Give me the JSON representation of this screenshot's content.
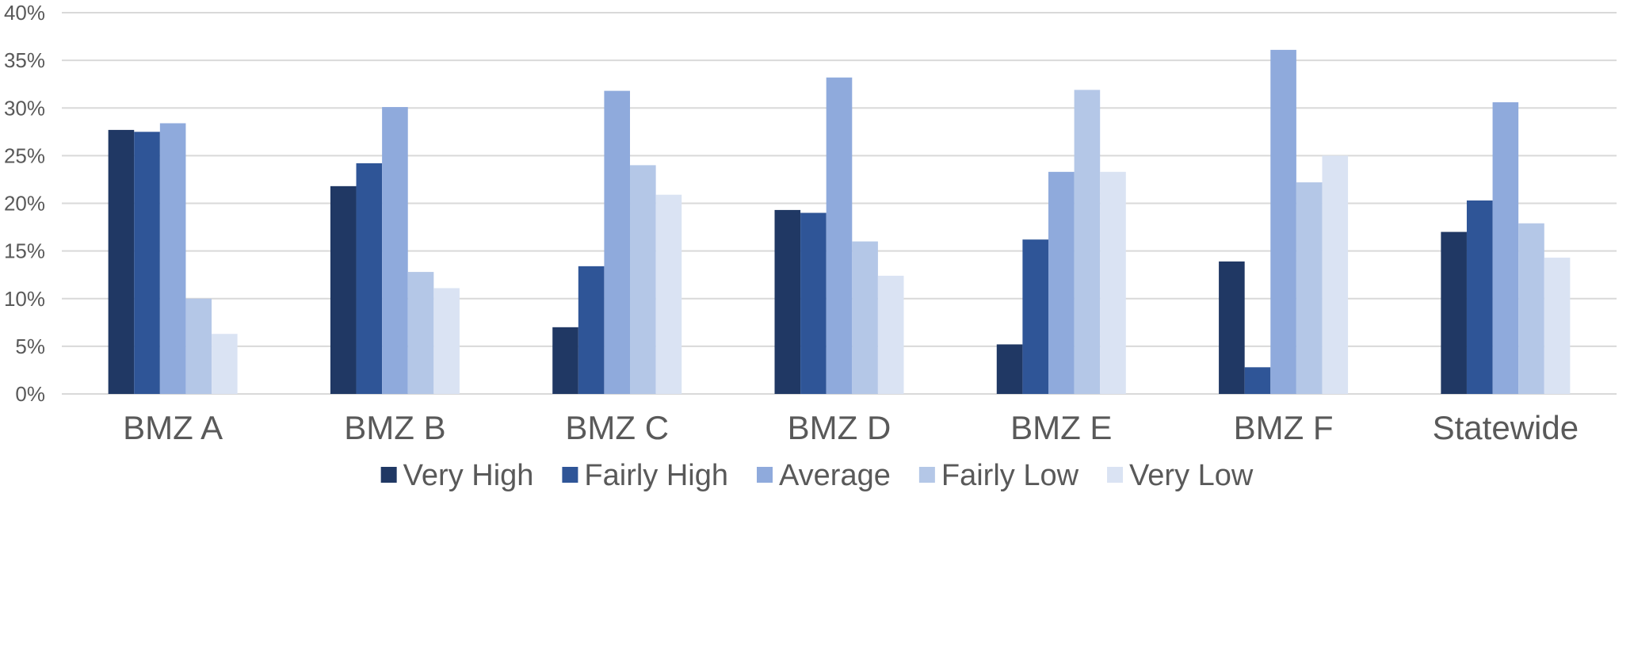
{
  "chart_data": {
    "type": "bar",
    "categories": [
      "BMZ A",
      "BMZ B",
      "BMZ C",
      "BMZ D",
      "BMZ E",
      "BMZ F",
      "Statewide"
    ],
    "series": [
      {
        "name": "Very High",
        "color": "#203864",
        "values": [
          27.7,
          21.8,
          7.0,
          19.3,
          5.2,
          13.9,
          17.0
        ]
      },
      {
        "name": "Fairly High",
        "color": "#2f5597",
        "values": [
          27.5,
          24.2,
          13.4,
          19.0,
          16.2,
          2.8,
          20.3
        ]
      },
      {
        "name": "Average",
        "color": "#8faadc",
        "values": [
          28.4,
          30.1,
          31.8,
          33.2,
          23.3,
          36.1,
          30.6
        ]
      },
      {
        "name": "Fairly Low",
        "color": "#b4c7e7",
        "values": [
          10.0,
          12.8,
          24.0,
          16.0,
          31.9,
          22.2,
          17.9
        ]
      },
      {
        "name": "Very Low",
        "color": "#dae3f3",
        "values": [
          6.3,
          11.1,
          20.9,
          12.4,
          23.3,
          25.0,
          14.3
        ]
      }
    ],
    "yticks": [
      "0%",
      "5%",
      "10%",
      "15%",
      "20%",
      "25%",
      "30%",
      "35%",
      "40%"
    ],
    "ylim": [
      0,
      40
    ],
    "grid": true,
    "legend_position": "bottom"
  }
}
